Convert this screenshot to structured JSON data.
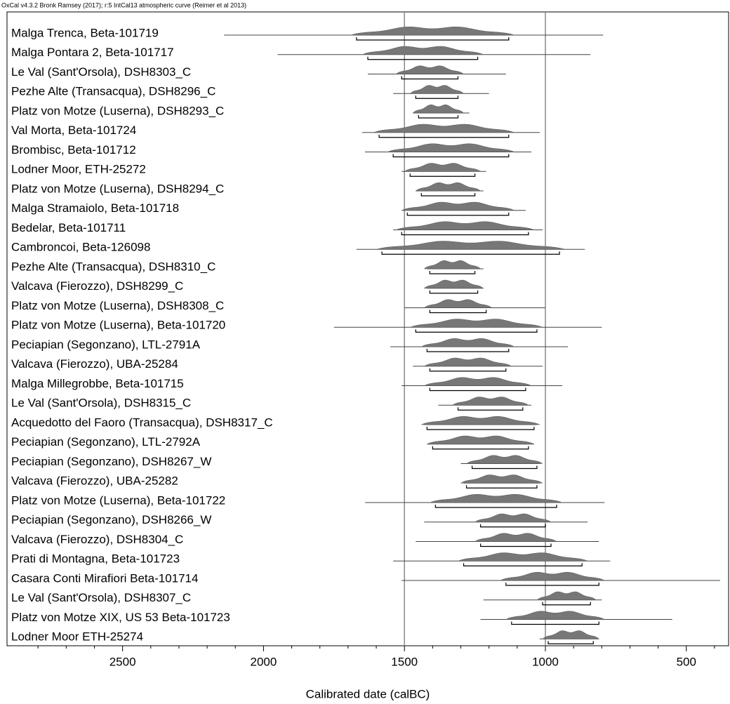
{
  "chart_data": {
    "type": "multiplot",
    "header": "OxCal v4.3.2 Bronk Ramsey (2017); r:5 IntCal13 atmospheric curve (Reimer et al 2013)",
    "xlabel": "Calibrated date (calBC)",
    "xlim": [
      2910,
      350
    ],
    "xticks": [
      2500,
      2000,
      1500,
      1000,
      500
    ],
    "xminorticks": [
      2800,
      2700,
      2600,
      2400,
      2300,
      2200,
      2100,
      1900,
      1800,
      1700,
      1600,
      1400,
      1300,
      1200,
      1100,
      900,
      800,
      700,
      600,
      400
    ],
    "reference_lines": [
      1500,
      1000
    ],
    "color": "#777777",
    "rows": [
      {
        "name": "Malga Trenca, Beta-101719",
        "line": [
          2140,
          795
        ],
        "range": [
          1670,
          1130
        ]
      },
      {
        "name": "Malga Pontara 2, Beta-101717",
        "line": [
          1950,
          840
        ],
        "range": [
          1630,
          1240
        ]
      },
      {
        "name": "Le Val (Sant'Orsola), DSH8303_C",
        "line": [
          1630,
          1140
        ],
        "range": [
          1510,
          1310
        ]
      },
      {
        "name": "Pezhe Alte (Transacqua), DSH8296_C",
        "line": [
          1540,
          1200
        ],
        "range": [
          1460,
          1310
        ]
      },
      {
        "name": "Platz von Motze (Luserna), DSH8293_C",
        "line": [
          1470,
          1270
        ],
        "range": [
          1450,
          1310
        ]
      },
      {
        "name": "Val Morta, Beta-101724",
        "line": [
          1650,
          1020
        ],
        "range": [
          1590,
          1130
        ]
      },
      {
        "name": "Brombisc, Beta-101712",
        "line": [
          1640,
          1050
        ],
        "range": [
          1540,
          1130
        ]
      },
      {
        "name": "Lodner Moor, ETH-25272",
        "line": [
          1510,
          1210
        ],
        "range": [
          1480,
          1250
        ]
      },
      {
        "name": "Platz von Motze (Luserna), DSH8294_C",
        "line": [
          1460,
          1220
        ],
        "range": [
          1440,
          1250
        ]
      },
      {
        "name": "Malga Stramaiolo, Beta-101718",
        "line": [
          1510,
          1070
        ],
        "range": [
          1490,
          1130
        ]
      },
      {
        "name": "Bedelar, Beta-101711",
        "line": [
          1540,
          1010
        ],
        "range": [
          1510,
          1060
        ]
      },
      {
        "name": "Cambroncoi, Beta-126098",
        "line": [
          1670,
          860
        ],
        "range": [
          1580,
          950
        ]
      },
      {
        "name": "Pezhe Alte (Transacqua), DSH8310_C",
        "line": [
          1420,
          1220
        ],
        "range": [
          1410,
          1250
        ]
      },
      {
        "name": "Valcava (Fierozzo), DSH8299_C",
        "line": [
          1420,
          1220
        ],
        "range": [
          1410,
          1240
        ]
      },
      {
        "name": "Platz von Motze (Luserna), DSH8308_C",
        "line": [
          1500,
          1000
        ],
        "range": [
          1410,
          1210
        ]
      },
      {
        "name": "Platz von Motze (Luserna), Beta-101720",
        "line": [
          1750,
          800
        ],
        "range": [
          1460,
          1030
        ]
      },
      {
        "name": "Peciapian (Segonzano), LTL-2791A",
        "line": [
          1550,
          920
        ],
        "range": [
          1420,
          1130
        ]
      },
      {
        "name": "Valcava (Fierozzo), UBA-25284",
        "line": [
          1470,
          1010
        ],
        "range": [
          1410,
          1140
        ]
      },
      {
        "name": "Malga Millegrobbe, Beta-101715",
        "line": [
          1510,
          940
        ],
        "range": [
          1410,
          1070
        ]
      },
      {
        "name": "Le Val (Sant'Orsola), DSH8315_C",
        "line": [
          1380,
          1050
        ],
        "range": [
          1310,
          1080
        ]
      },
      {
        "name": "Acquedotto del Faoro (Transacqua), DSH8317_C",
        "line": [
          1430,
          1030
        ],
        "range": [
          1420,
          1040
        ]
      },
      {
        "name": "Peciapian (Segonzano), LTL-2792A",
        "line": [
          1420,
          1040
        ],
        "range": [
          1400,
          1060
        ]
      },
      {
        "name": "Peciapian (Segonzano), DSH8267_W",
        "line": [
          1300,
          1020
        ],
        "range": [
          1260,
          1030
        ]
      },
      {
        "name": "Valcava (Fierozzo), UBA-25282",
        "line": [
          1290,
          1020
        ],
        "range": [
          1280,
          1030
        ]
      },
      {
        "name": "Platz von Motze (Luserna), Beta-101722",
        "line": [
          1640,
          790
        ],
        "range": [
          1390,
          960
        ]
      },
      {
        "name": "Peciapian (Segonzano), DSH8266_W",
        "line": [
          1430,
          850
        ],
        "range": [
          1230,
          1000
        ]
      },
      {
        "name": "Valcava (Fierozzo), DSH8304_C",
        "line": [
          1460,
          810
        ],
        "range": [
          1230,
          980
        ]
      },
      {
        "name": "Prati di Montagna, Beta-101723",
        "line": [
          1540,
          770
        ],
        "range": [
          1290,
          870
        ]
      },
      {
        "name": "Casara Conti Mirafiori Beta-101714",
        "line": [
          1510,
          380
        ],
        "range": [
          1140,
          810
        ]
      },
      {
        "name": "Le Val (Sant'Orsola), DSH8307_C",
        "line": [
          1220,
          800
        ],
        "range": [
          1010,
          840
        ]
      },
      {
        "name": "Platz von Motze XIX, US 53 Beta-101723",
        "line": [
          1230,
          550
        ],
        "range": [
          1120,
          810
        ]
      },
      {
        "name": "Lodner Moor ETH-25274",
        "line": [
          1020,
          810
        ],
        "range": [
          990,
          830
        ]
      }
    ]
  }
}
